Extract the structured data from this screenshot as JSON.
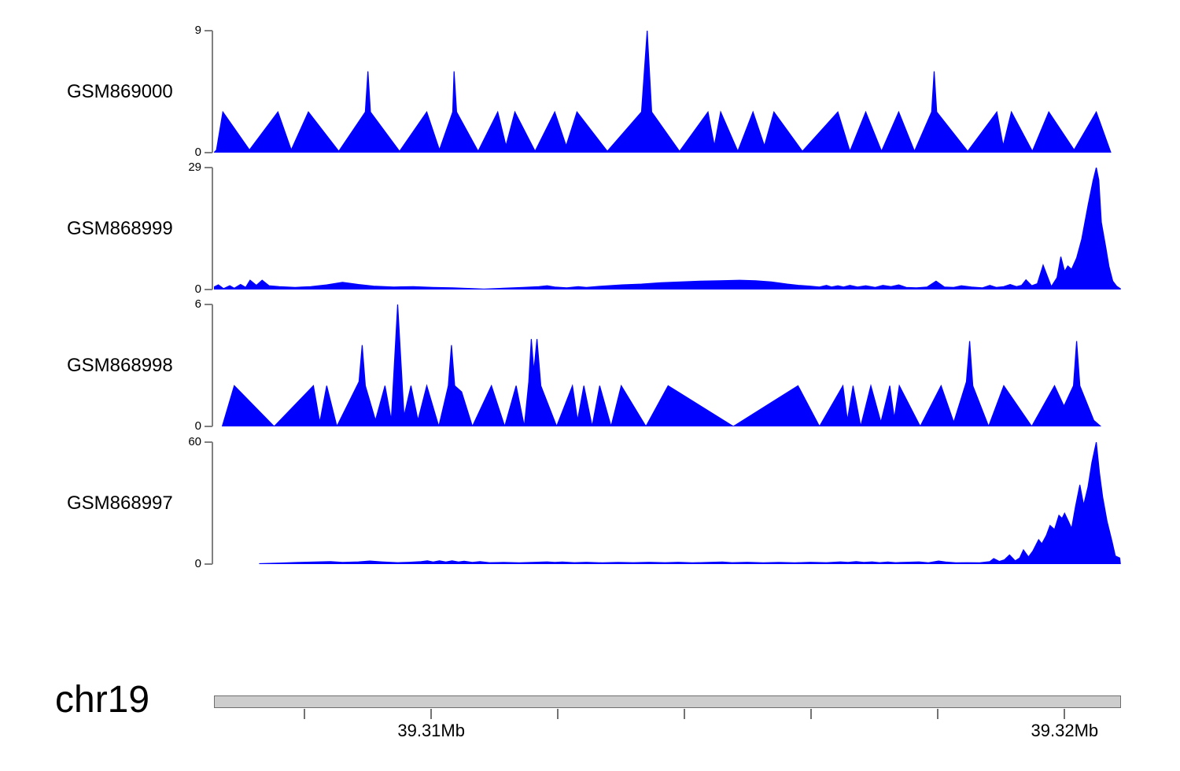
{
  "figure_type": "genome-browser-data-tracks",
  "colors": {
    "data_fill": "#0000FF",
    "axis_line": "#808080",
    "text": "#000000",
    "chromosome_bar_fill": "#CDCDCD",
    "chromosome_bar_border": "#6E6E6E"
  },
  "tracks": [
    {
      "name": "GSM869000",
      "ymax_label": "9",
      "ymin_label": "0"
    },
    {
      "name": "GSM868999",
      "ymax_label": "29",
      "ymin_label": "0"
    },
    {
      "name": "GSM868998",
      "ymax_label": "6",
      "ymin_label": "0"
    },
    {
      "name": "GSM868997",
      "ymax_label": "60",
      "ymin_label": "0"
    }
  ],
  "genome_axis": {
    "chromosome": "chr19",
    "range_mb": [
      39.30657,
      39.32089
    ],
    "tick_positions_mb": [
      39.308,
      39.31,
      39.312,
      39.314,
      39.316,
      39.318,
      39.32
    ],
    "labeled_ticks": [
      {
        "position_mb": 39.31,
        "label": "39.31Mb"
      },
      {
        "position_mb": 39.32,
        "label": "39.32Mb"
      }
    ]
  },
  "chart_data": [
    {
      "type": "area",
      "name": "GSM869000",
      "xlabel": "chr19 position (Mb)",
      "ylabel": "signal",
      "ylim": [
        0,
        9
      ],
      "points": [
        [
          39.30657,
          0
        ],
        [
          39.30661,
          0.2
        ],
        [
          39.30671,
          3
        ],
        [
          39.30713,
          0.2
        ],
        [
          39.30758,
          3
        ],
        [
          39.30779,
          0.2
        ],
        [
          39.30806,
          3
        ],
        [
          39.30854,
          0.1
        ],
        [
          39.30896,
          3
        ],
        [
          39.309,
          6
        ],
        [
          39.30904,
          3
        ],
        [
          39.3095,
          0.1
        ],
        [
          39.30993,
          3
        ],
        [
          39.31013,
          0.2
        ],
        [
          39.31034,
          3
        ],
        [
          39.31036,
          6
        ],
        [
          39.3104,
          3
        ],
        [
          39.31074,
          0.1
        ],
        [
          39.31105,
          3
        ],
        [
          39.31118,
          0.5
        ],
        [
          39.31132,
          3
        ],
        [
          39.31164,
          0.1
        ],
        [
          39.31195,
          3
        ],
        [
          39.31213,
          0.5
        ],
        [
          39.3123,
          3
        ],
        [
          39.31278,
          0.1
        ],
        [
          39.31332,
          3
        ],
        [
          39.31341,
          9
        ],
        [
          39.31348,
          3
        ],
        [
          39.31392,
          0.1
        ],
        [
          39.31437,
          3
        ],
        [
          39.31447,
          0.5
        ],
        [
          39.31457,
          3
        ],
        [
          39.31484,
          0.1
        ],
        [
          39.31508,
          3
        ],
        [
          39.31526,
          0.5
        ],
        [
          39.31541,
          3
        ],
        [
          39.31586,
          0.1
        ],
        [
          39.31642,
          3
        ],
        [
          39.31661,
          0.1
        ],
        [
          39.31686,
          3
        ],
        [
          39.31711,
          0.1
        ],
        [
          39.31738,
          3
        ],
        [
          39.31763,
          0.1
        ],
        [
          39.3179,
          3
        ],
        [
          39.31794,
          6
        ],
        [
          39.31798,
          3
        ],
        [
          39.31847,
          0.1
        ],
        [
          39.31893,
          3
        ],
        [
          39.31903,
          0.5
        ],
        [
          39.31916,
          3
        ],
        [
          39.31949,
          0.1
        ],
        [
          39.31975,
          3
        ],
        [
          39.32015,
          0.2
        ],
        [
          39.3205,
          3
        ],
        [
          39.32073,
          0
        ]
      ]
    },
    {
      "type": "area",
      "name": "GSM868999",
      "xlabel": "chr19 position (Mb)",
      "ylabel": "signal",
      "ylim": [
        0,
        29
      ],
      "points": [
        [
          39.30657,
          0.6
        ],
        [
          39.30664,
          1.1
        ],
        [
          39.30672,
          0.2
        ],
        [
          39.30682,
          0.9
        ],
        [
          39.30689,
          0.3
        ],
        [
          39.30699,
          1.2
        ],
        [
          39.30707,
          0.5
        ],
        [
          39.30714,
          2.2
        ],
        [
          39.30724,
          1.0
        ],
        [
          39.30733,
          2.2
        ],
        [
          39.30744,
          0.9
        ],
        [
          39.3076,
          0.7
        ],
        [
          39.30785,
          0.5
        ],
        [
          39.3081,
          0.7
        ],
        [
          39.30835,
          1.1
        ],
        [
          39.3086,
          1.7
        ],
        [
          39.30885,
          1.2
        ],
        [
          39.30909,
          0.8
        ],
        [
          39.30941,
          0.6
        ],
        [
          39.30972,
          0.7
        ],
        [
          39.31003,
          0.5
        ],
        [
          39.31034,
          0.4
        ],
        [
          39.31065,
          0.2
        ],
        [
          39.31083,
          0.1
        ],
        [
          39.31114,
          0.3
        ],
        [
          39.31145,
          0.5
        ],
        [
          39.3117,
          0.7
        ],
        [
          39.31183,
          0.9
        ],
        [
          39.31195,
          0.6
        ],
        [
          39.31214,
          0.4
        ],
        [
          39.31232,
          0.7
        ],
        [
          39.31245,
          0.5
        ],
        [
          39.3127,
          0.8
        ],
        [
          39.31301,
          1.1
        ],
        [
          39.31332,
          1.3
        ],
        [
          39.31363,
          1.6
        ],
        [
          39.31394,
          1.8
        ],
        [
          39.31425,
          2.0
        ],
        [
          39.31456,
          2.1
        ],
        [
          39.31487,
          2.2
        ],
        [
          39.31512,
          2.1
        ],
        [
          39.31537,
          1.8
        ],
        [
          39.31562,
          1.3
        ],
        [
          39.3158,
          1.0
        ],
        [
          39.31598,
          0.8
        ],
        [
          39.31613,
          0.6
        ],
        [
          39.31624,
          1.0
        ],
        [
          39.31632,
          0.6
        ],
        [
          39.31642,
          0.9
        ],
        [
          39.31651,
          0.6
        ],
        [
          39.31661,
          1.0
        ],
        [
          39.31673,
          0.6
        ],
        [
          39.31686,
          0.9
        ],
        [
          39.31701,
          0.5
        ],
        [
          39.31713,
          1.0
        ],
        [
          39.31726,
          0.7
        ],
        [
          39.31738,
          1.1
        ],
        [
          39.3175,
          0.5
        ],
        [
          39.31766,
          0.4
        ],
        [
          39.31783,
          0.6
        ],
        [
          39.31797,
          2.0
        ],
        [
          39.3181,
          0.6
        ],
        [
          39.31825,
          0.5
        ],
        [
          39.31837,
          0.9
        ],
        [
          39.31853,
          0.6
        ],
        [
          39.3187,
          0.4
        ],
        [
          39.31882,
          1.0
        ],
        [
          39.31892,
          0.5
        ],
        [
          39.31904,
          0.7
        ],
        [
          39.31914,
          1.2
        ],
        [
          39.31924,
          0.7
        ],
        [
          39.31932,
          1.0
        ],
        [
          39.31939,
          2.3
        ],
        [
          39.31948,
          0.9
        ],
        [
          39.31957,
          1.4
        ],
        [
          39.31966,
          5.8
        ],
        [
          39.31979,
          0.7
        ],
        [
          39.31988,
          2.8
        ],
        [
          39.31994,
          7.8
        ],
        [
          39.32,
          4.3
        ],
        [
          39.32005,
          5.6
        ],
        [
          39.32011,
          4.8
        ],
        [
          39.32019,
          7.5
        ],
        [
          39.32027,
          12
        ],
        [
          39.32037,
          20
        ],
        [
          39.32045,
          26
        ],
        [
          39.3205,
          29
        ],
        [
          39.32054,
          26
        ],
        [
          39.32058,
          16
        ],
        [
          39.32065,
          10
        ],
        [
          39.3207,
          5.5
        ],
        [
          39.32076,
          2
        ],
        [
          39.32082,
          0.8
        ],
        [
          39.32088,
          0.2
        ]
      ]
    },
    {
      "type": "area",
      "name": "GSM868998",
      "xlabel": "chr19 position (Mb)",
      "ylabel": "signal",
      "ylim": [
        0,
        6
      ],
      "points": [
        [
          39.3067,
          0
        ],
        [
          39.30689,
          2
        ],
        [
          39.30752,
          0
        ],
        [
          39.30814,
          2
        ],
        [
          39.30824,
          0.2
        ],
        [
          39.30835,
          2
        ],
        [
          39.30851,
          0
        ],
        [
          39.30886,
          2.2
        ],
        [
          39.30891,
          4
        ],
        [
          39.30896,
          2
        ],
        [
          39.30912,
          0.3
        ],
        [
          39.30927,
          2
        ],
        [
          39.30937,
          0.3
        ],
        [
          39.30947,
          6
        ],
        [
          39.30957,
          0.5
        ],
        [
          39.30968,
          2
        ],
        [
          39.30979,
          0.3
        ],
        [
          39.30993,
          2
        ],
        [
          39.31012,
          0
        ],
        [
          39.31027,
          2
        ],
        [
          39.31032,
          4
        ],
        [
          39.31037,
          2
        ],
        [
          39.31048,
          1.7
        ],
        [
          39.31065,
          0
        ],
        [
          39.31095,
          2
        ],
        [
          39.31116,
          0
        ],
        [
          39.31134,
          2
        ],
        [
          39.31147,
          0
        ],
        [
          39.31154,
          2.2
        ],
        [
          39.31158,
          4.3
        ],
        [
          39.31162,
          2.7
        ],
        [
          39.31167,
          4.3
        ],
        [
          39.31173,
          2
        ],
        [
          39.31198,
          0
        ],
        [
          39.31223,
          2
        ],
        [
          39.31231,
          0.3
        ],
        [
          39.31241,
          2
        ],
        [
          39.31254,
          0
        ],
        [
          39.31266,
          2
        ],
        [
          39.31284,
          0
        ],
        [
          39.313,
          2
        ],
        [
          39.31339,
          0
        ],
        [
          39.31374,
          2
        ],
        [
          39.31477,
          0
        ],
        [
          39.31579,
          2
        ],
        [
          39.31613,
          0
        ],
        [
          39.3165,
          2
        ],
        [
          39.31657,
          0.3
        ],
        [
          39.31666,
          2
        ],
        [
          39.31678,
          0
        ],
        [
          39.31694,
          2
        ],
        [
          39.3171,
          0.2
        ],
        [
          39.31724,
          2
        ],
        [
          39.31731,
          0.4
        ],
        [
          39.31739,
          2
        ],
        [
          39.31772,
          0
        ],
        [
          39.31805,
          2
        ],
        [
          39.31825,
          0.2
        ],
        [
          39.31845,
          2.2
        ],
        [
          39.3185,
          4.2
        ],
        [
          39.31855,
          2
        ],
        [
          39.3188,
          0
        ],
        [
          39.31904,
          2
        ],
        [
          39.31948,
          0
        ],
        [
          39.31984,
          2
        ],
        [
          39.31999,
          1
        ],
        [
          39.32014,
          2
        ],
        [
          39.32019,
          4.2
        ],
        [
          39.32024,
          2
        ],
        [
          39.32046,
          0.3
        ],
        [
          39.32057,
          0
        ]
      ]
    },
    {
      "type": "area",
      "name": "GSM868997",
      "xlabel": "chr19 position (Mb)",
      "ylabel": "signal",
      "ylim": [
        0,
        60
      ],
      "points": [
        [
          39.30729,
          0.2
        ],
        [
          39.3076,
          0.5
        ],
        [
          39.30791,
          0.8
        ],
        [
          39.30822,
          1.1
        ],
        [
          39.30841,
          1.2
        ],
        [
          39.3086,
          0.8
        ],
        [
          39.30885,
          1.1
        ],
        [
          39.30903,
          1.5
        ],
        [
          39.30922,
          1.1
        ],
        [
          39.30947,
          0.7
        ],
        [
          39.30965,
          0.9
        ],
        [
          39.30984,
          1.2
        ],
        [
          39.30994,
          1.6
        ],
        [
          39.31003,
          1.0
        ],
        [
          39.31013,
          1.6
        ],
        [
          39.31023,
          1.0
        ],
        [
          39.31033,
          1.6
        ],
        [
          39.31043,
          1.0
        ],
        [
          39.31052,
          1.4
        ],
        [
          39.31065,
          0.8
        ],
        [
          39.31077,
          1.2
        ],
        [
          39.31092,
          0.7
        ],
        [
          39.31114,
          0.8
        ],
        [
          39.31139,
          0.6
        ],
        [
          39.31164,
          0.9
        ],
        [
          39.31183,
          1.1
        ],
        [
          39.31195,
          0.8
        ],
        [
          39.31207,
          1.0
        ],
        [
          39.31226,
          0.7
        ],
        [
          39.31245,
          0.9
        ],
        [
          39.3127,
          0.6
        ],
        [
          39.31295,
          0.8
        ],
        [
          39.31319,
          0.7
        ],
        [
          39.31344,
          0.9
        ],
        [
          39.31369,
          0.7
        ],
        [
          39.3139,
          0.9
        ],
        [
          39.31412,
          0.6
        ],
        [
          39.31437,
          0.8
        ],
        [
          39.3146,
          1.0
        ],
        [
          39.31475,
          0.7
        ],
        [
          39.31499,
          0.9
        ],
        [
          39.31524,
          0.6
        ],
        [
          39.31549,
          0.8
        ],
        [
          39.31574,
          0.6
        ],
        [
          39.31598,
          0.9
        ],
        [
          39.31624,
          0.7
        ],
        [
          39.31646,
          1.1
        ],
        [
          39.31658,
          0.8
        ],
        [
          39.31671,
          1.2
        ],
        [
          39.31683,
          0.8
        ],
        [
          39.31696,
          1.1
        ],
        [
          39.31708,
          0.7
        ],
        [
          39.31721,
          1.0
        ],
        [
          39.31733,
          0.7
        ],
        [
          39.3175,
          0.9
        ],
        [
          39.3177,
          1.1
        ],
        [
          39.31785,
          0.6
        ],
        [
          39.31801,
          1.5
        ],
        [
          39.31812,
          1.0
        ],
        [
          39.31828,
          0.6
        ],
        [
          39.31847,
          0.7
        ],
        [
          39.31866,
          0.6
        ],
        [
          39.31882,
          1.2
        ],
        [
          39.31888,
          2.7
        ],
        [
          39.31897,
          1.3
        ],
        [
          39.31905,
          2.1
        ],
        [
          39.31913,
          4.5
        ],
        [
          39.31922,
          1.6
        ],
        [
          39.31929,
          3.0
        ],
        [
          39.31935,
          7.0
        ],
        [
          39.31943,
          3.5
        ],
        [
          39.3195,
          6.5
        ],
        [
          39.31959,
          12
        ],
        [
          39.31964,
          10
        ],
        [
          39.31971,
          14
        ],
        [
          39.31977,
          19
        ],
        [
          39.31984,
          17
        ],
        [
          39.31991,
          24
        ],
        [
          39.31996,
          22.5
        ],
        [
          39.32,
          25
        ],
        [
          39.32006,
          21
        ],
        [
          39.32011,
          17.5
        ],
        [
          39.32017,
          28
        ],
        [
          39.32024,
          39
        ],
        [
          39.3203,
          29
        ],
        [
          39.32037,
          38
        ],
        [
          39.32043,
          50
        ],
        [
          39.3205,
          60
        ],
        [
          39.32055,
          45
        ],
        [
          39.3206,
          33
        ],
        [
          39.32067,
          21
        ],
        [
          39.32075,
          11
        ],
        [
          39.3208,
          4
        ],
        [
          39.32087,
          3
        ],
        [
          39.32088,
          0
        ]
      ]
    }
  ]
}
